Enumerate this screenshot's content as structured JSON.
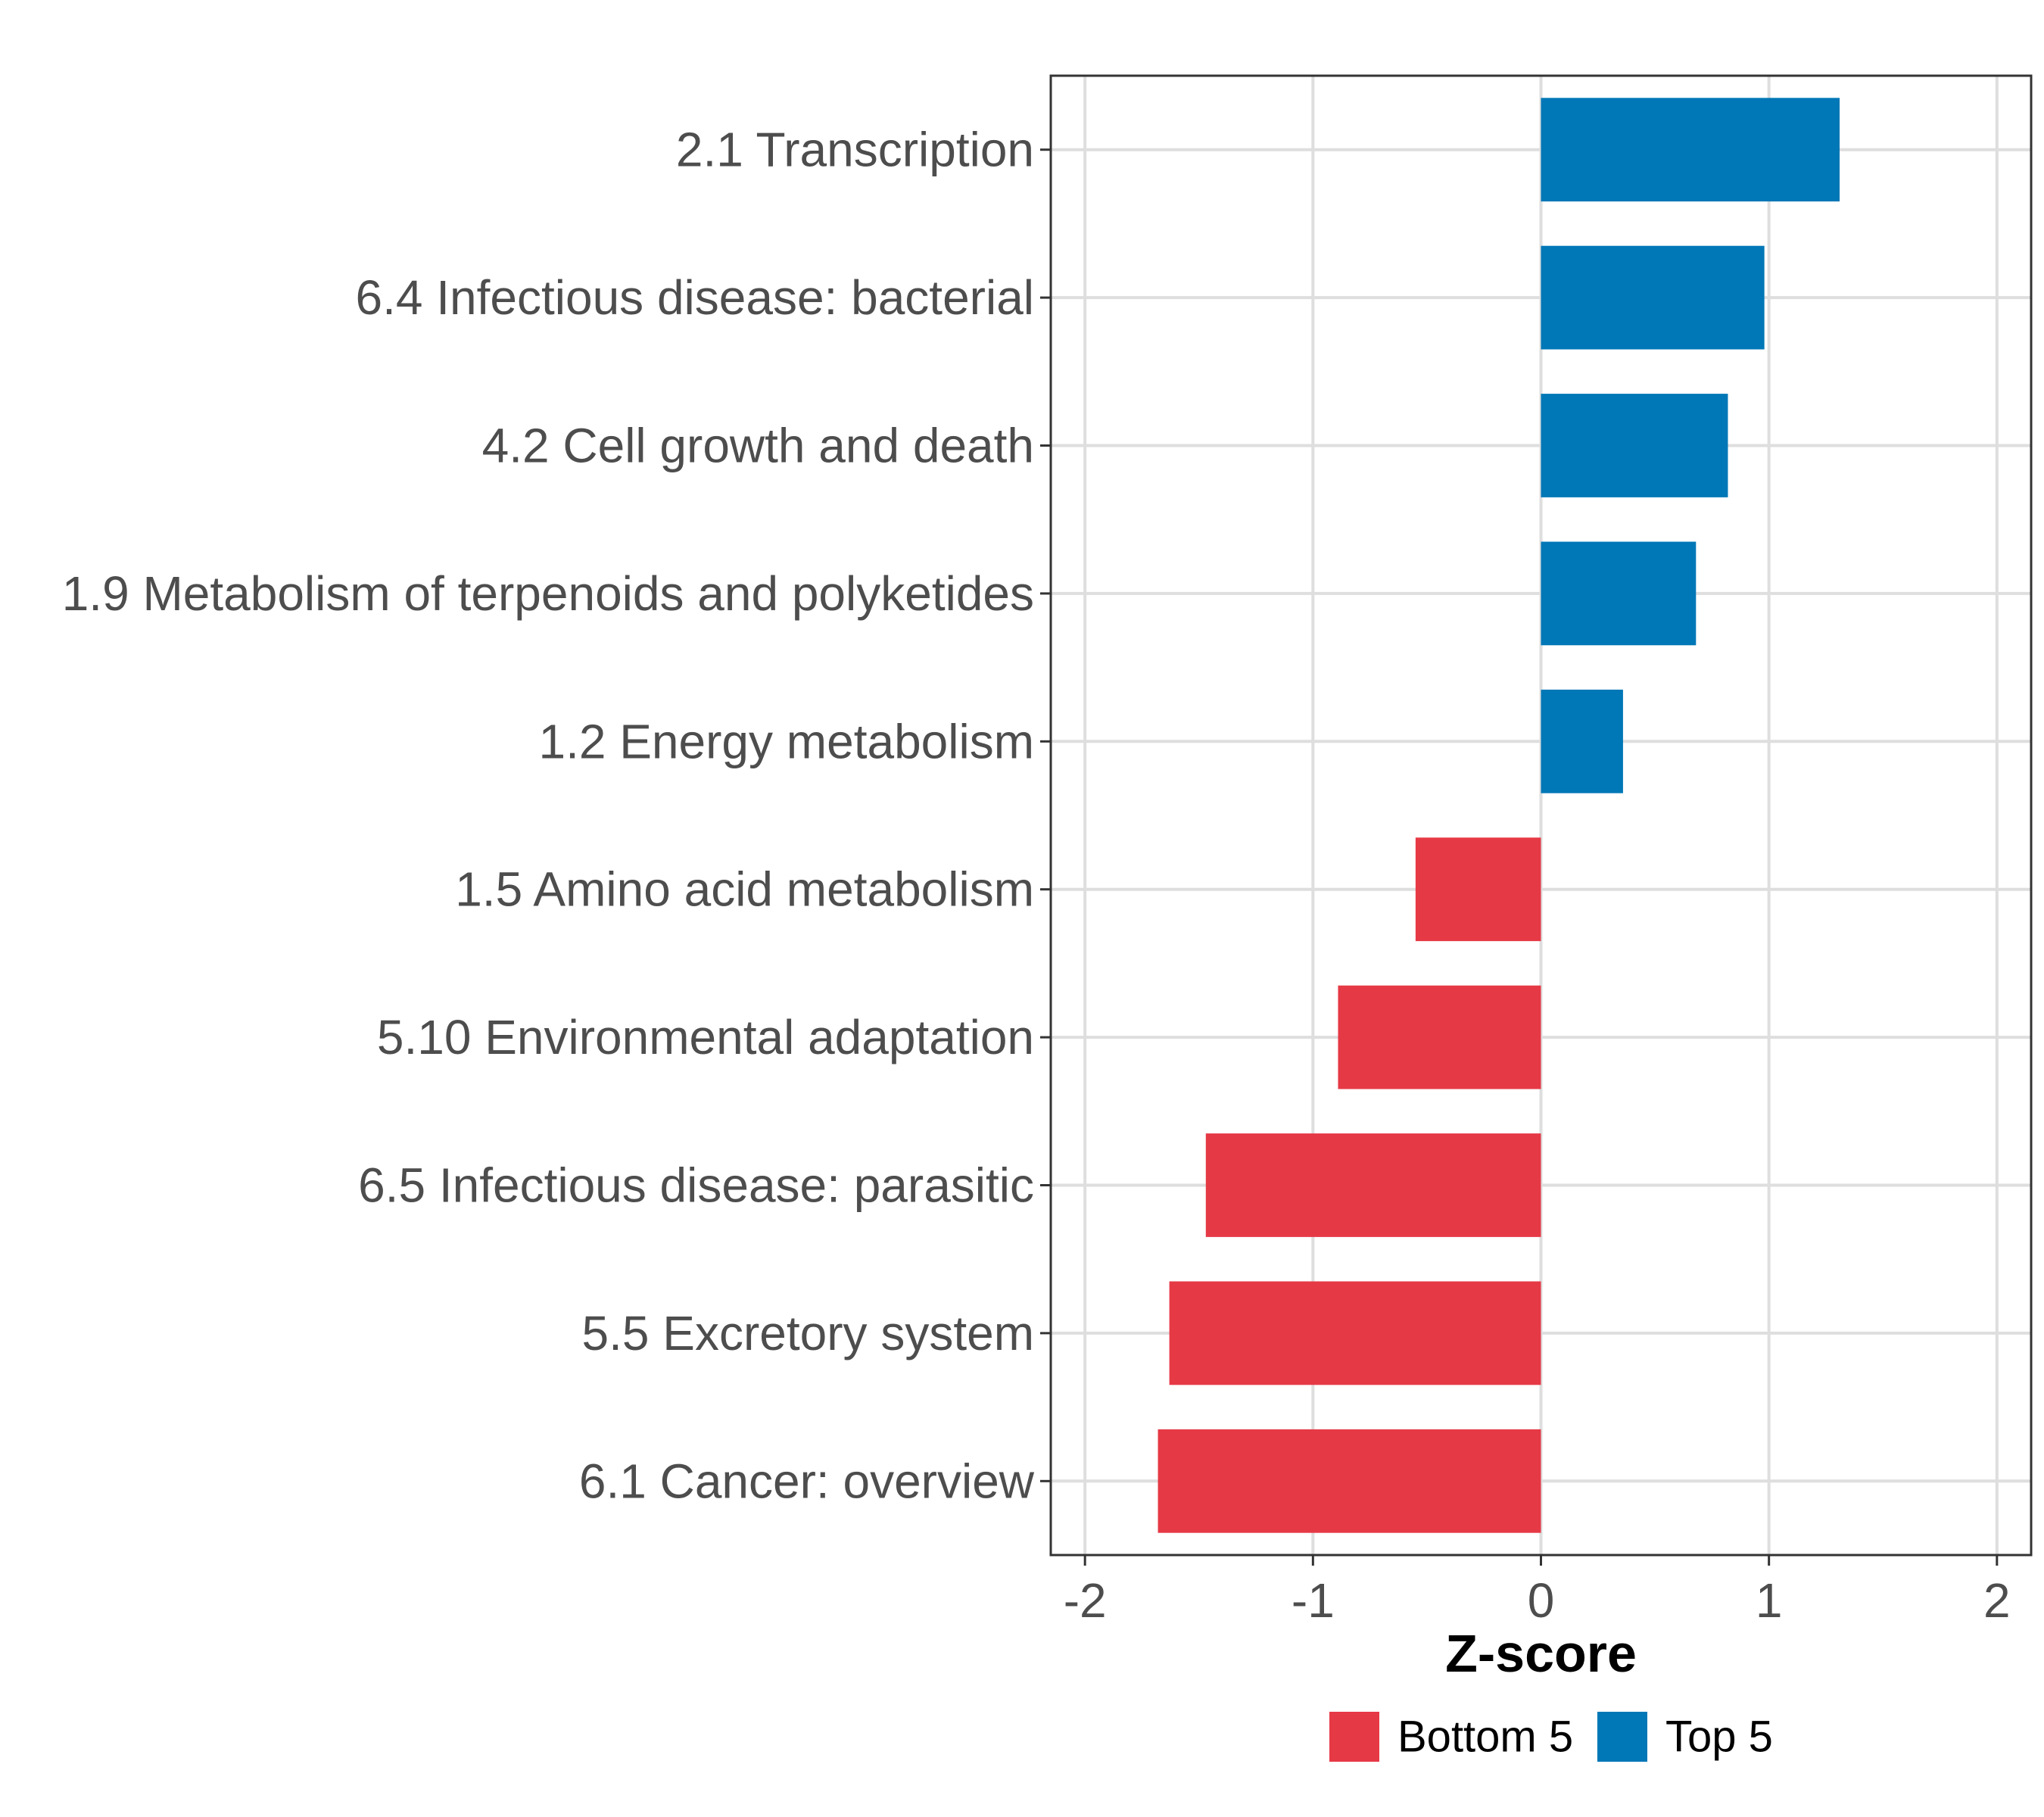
{
  "chart_data": {
    "type": "bar",
    "orientation": "horizontal",
    "categories": [
      "2.1 Transcription",
      "6.4 Infectious disease: bacterial",
      "4.2 Cell growth and death",
      "1.9 Metabolism of terpenoids and polyketides",
      "1.2 Energy metabolism",
      "1.5 Amino acid metabolism",
      "5.10 Environmental adaptation",
      "6.5 Infectious disease: parasitic",
      "5.5 Excretory system",
      "6.1 Cancer: overview"
    ],
    "values": [
      1.31,
      0.98,
      0.82,
      0.68,
      0.36,
      -0.55,
      -0.89,
      -1.47,
      -1.63,
      -1.68
    ],
    "groups": [
      "Top 5",
      "Top 5",
      "Top 5",
      "Top 5",
      "Top 5",
      "Bottom 5",
      "Bottom 5",
      "Bottom 5",
      "Bottom 5",
      "Bottom 5"
    ],
    "xlabel": "Z-score",
    "ylabel": "",
    "xlim": [
      -2.15,
      2.15
    ],
    "xticks": [
      -2,
      -1,
      0,
      1,
      2
    ],
    "xtick_labels": [
      "-2",
      "-1",
      "0",
      "1",
      "2"
    ],
    "grid": true,
    "legend": {
      "position": "bottom",
      "entries": [
        {
          "label": "Bottom 5",
          "color": "#e63946"
        },
        {
          "label": "Top 5",
          "color": "#0077b6"
        }
      ]
    }
  }
}
